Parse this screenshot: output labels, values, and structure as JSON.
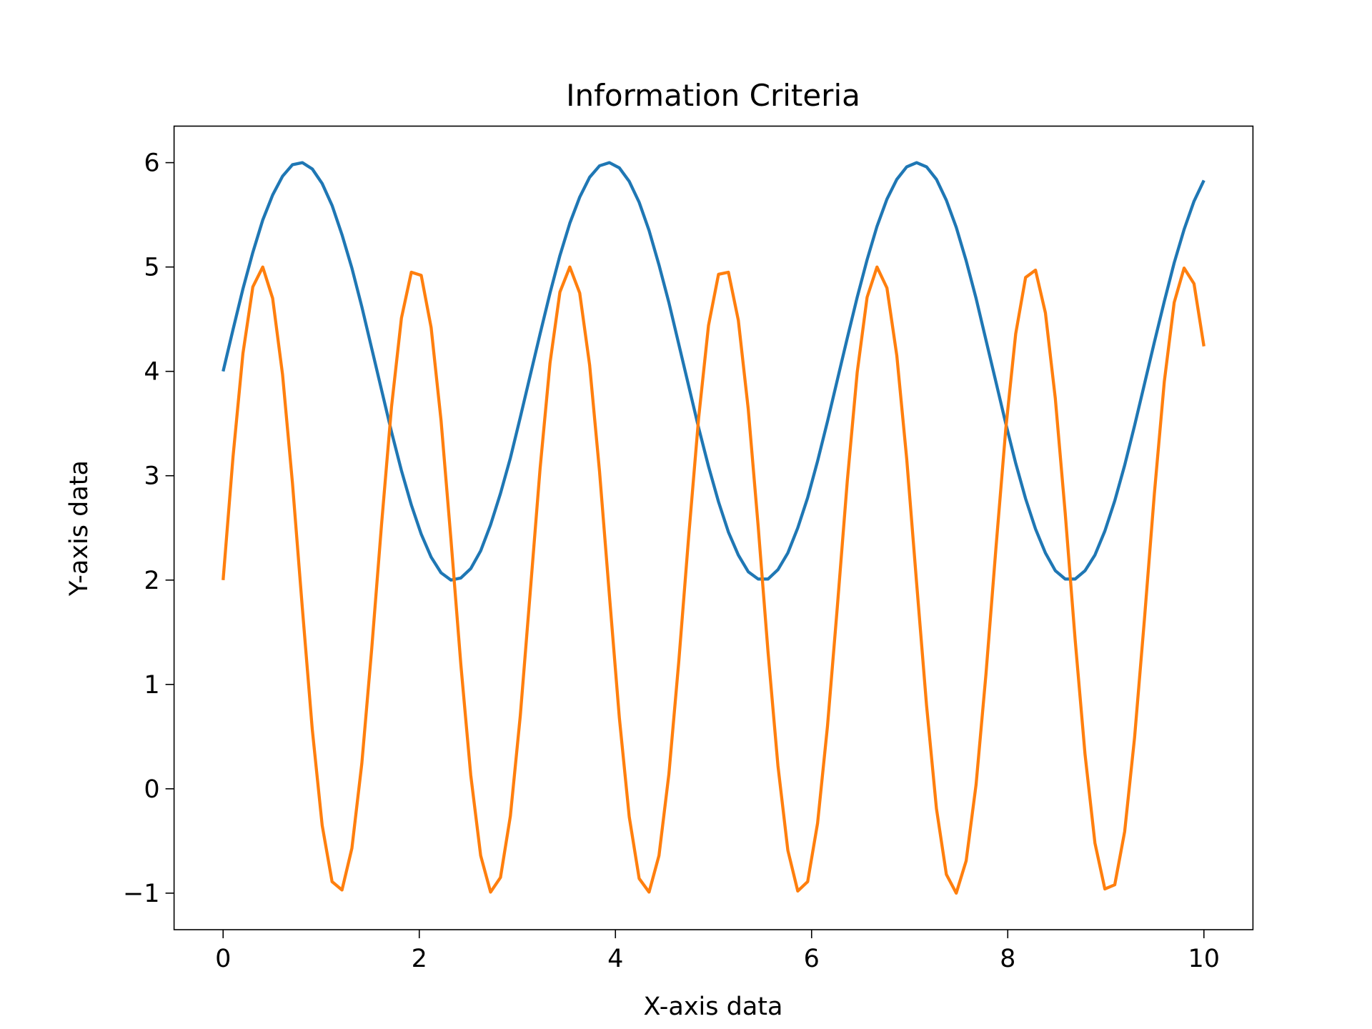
{
  "chart_data": {
    "type": "line",
    "title": "Information Criteria",
    "xlabel": "X-axis data",
    "ylabel": "Y-axis data",
    "x": [
      0,
      0.101,
      0.202,
      0.303,
      0.404,
      0.505,
      0.606,
      0.707,
      0.808,
      0.909,
      1.01,
      1.111,
      1.212,
      1.313,
      1.414,
      1.515,
      1.616,
      1.717,
      1.818,
      1.919,
      2.02,
      2.121,
      2.222,
      2.323,
      2.424,
      2.525,
      2.626,
      2.727,
      2.828,
      2.929,
      3.03,
      3.131,
      3.232,
      3.333,
      3.434,
      3.535,
      3.636,
      3.737,
      3.838,
      3.939,
      4.04,
      4.141,
      4.242,
      4.343,
      4.444,
      4.545,
      4.646,
      4.747,
      4.848,
      4.949,
      5.051,
      5.152,
      5.253,
      5.354,
      5.455,
      5.556,
      5.657,
      5.758,
      5.859,
      5.96,
      6.061,
      6.162,
      6.263,
      6.364,
      6.465,
      6.566,
      6.667,
      6.768,
      6.869,
      6.97,
      7.071,
      7.172,
      7.273,
      7.374,
      7.475,
      7.576,
      7.677,
      7.778,
      7.879,
      7.98,
      8.081,
      8.182,
      8.283,
      8.384,
      8.485,
      8.586,
      8.687,
      8.788,
      8.889,
      8.99,
      9.091,
      9.192,
      9.293,
      9.394,
      9.495,
      9.596,
      9.697,
      9.798,
      9.899,
      10
    ],
    "series": [
      {
        "color": "#1f77b4",
        "values": [
          4.0,
          4.4,
          4.79,
          5.14,
          5.45,
          5.69,
          5.87,
          5.98,
          6.0,
          5.94,
          5.8,
          5.59,
          5.31,
          4.99,
          4.62,
          4.22,
          3.82,
          3.42,
          3.05,
          2.72,
          2.44,
          2.22,
          2.07,
          2.0,
          2.02,
          2.11,
          2.28,
          2.53,
          2.83,
          3.17,
          3.56,
          3.96,
          4.36,
          4.75,
          5.11,
          5.42,
          5.67,
          5.86,
          5.97,
          6.0,
          5.95,
          5.82,
          5.62,
          5.35,
          5.02,
          4.66,
          4.26,
          3.86,
          3.46,
          3.09,
          2.75,
          2.46,
          2.24,
          2.08,
          2.01,
          2.01,
          2.1,
          2.26,
          2.5,
          2.79,
          3.14,
          3.52,
          3.92,
          4.32,
          4.71,
          5.07,
          5.39,
          5.65,
          5.84,
          5.96,
          6.0,
          5.96,
          5.84,
          5.64,
          5.38,
          5.06,
          4.7,
          4.3,
          3.9,
          3.5,
          3.12,
          2.78,
          2.49,
          2.26,
          2.09,
          2.01,
          2.01,
          2.09,
          2.24,
          2.47,
          2.76,
          3.1,
          3.48,
          3.88,
          4.28,
          4.67,
          5.04,
          5.36,
          5.63,
          5.83
        ]
      },
      {
        "color": "#ff7f0e",
        "values": [
          2.0,
          3.18,
          4.17,
          4.81,
          5.0,
          4.7,
          3.97,
          2.93,
          1.73,
          0.57,
          -0.35,
          -0.89,
          -0.97,
          -0.57,
          0.24,
          1.34,
          2.54,
          3.66,
          4.51,
          4.95,
          4.92,
          4.42,
          3.53,
          2.39,
          1.19,
          0.13,
          -0.64,
          -0.99,
          -0.85,
          -0.26,
          0.7,
          1.88,
          3.07,
          4.08,
          4.76,
          5.0,
          4.75,
          4.06,
          3.04,
          1.85,
          0.68,
          -0.27,
          -0.86,
          -0.99,
          -0.64,
          0.14,
          1.22,
          2.42,
          3.55,
          4.44,
          4.93,
          4.95,
          4.49,
          3.64,
          2.52,
          1.31,
          0.22,
          -0.59,
          -0.98,
          -0.89,
          -0.33,
          0.6,
          1.75,
          2.95,
          3.99,
          4.71,
          5.0,
          4.8,
          4.15,
          3.16,
          1.97,
          0.8,
          -0.19,
          -0.82,
          -1.0,
          -0.69,
          0.04,
          1.1,
          2.3,
          3.45,
          4.36,
          4.9,
          4.97,
          4.56,
          3.74,
          2.64,
          1.43,
          0.33,
          -0.52,
          -0.96,
          -0.92,
          -0.41,
          0.49,
          1.63,
          2.83,
          3.9,
          4.66,
          4.99,
          4.84,
          4.24
        ]
      }
    ],
    "xlim": [
      -0.5,
      10.5
    ],
    "xticks": [
      0,
      2,
      4,
      6,
      8,
      10
    ],
    "ylim": [
      -1.35,
      6.35
    ],
    "yticks": [
      {
        "value": -1,
        "label": "−1"
      },
      0,
      1,
      2,
      3,
      4,
      5,
      6
    ],
    "grid": false
  }
}
